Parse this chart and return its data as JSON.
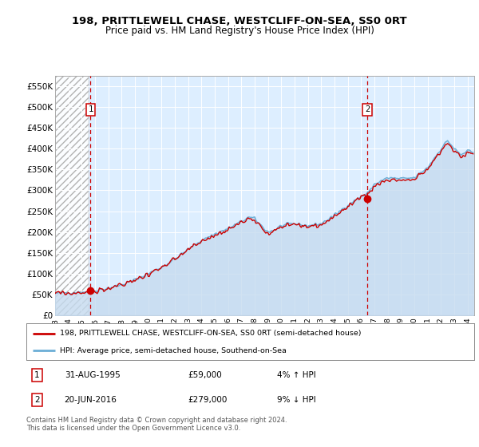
{
  "title": "198, PRITTLEWELL CHASE, WESTCLIFF-ON-SEA, SS0 0RT",
  "subtitle": "Price paid vs. HM Land Registry's House Price Index (HPI)",
  "ylim": [
    0,
    575000
  ],
  "yticks": [
    0,
    50000,
    100000,
    150000,
    200000,
    250000,
    300000,
    350000,
    400000,
    450000,
    500000,
    550000
  ],
  "ytick_labels": [
    "£0",
    "£50K",
    "£100K",
    "£150K",
    "£200K",
    "£250K",
    "£300K",
    "£350K",
    "£400K",
    "£450K",
    "£500K",
    "£550K"
  ],
  "xtick_years": [
    "1993",
    "1994",
    "1995",
    "1996",
    "1997",
    "1998",
    "1999",
    "2000",
    "2001",
    "2002",
    "2003",
    "2004",
    "2005",
    "2006",
    "2007",
    "2008",
    "2009",
    "2010",
    "2011",
    "2012",
    "2013",
    "2014",
    "2015",
    "2016",
    "2017",
    "2018",
    "2019",
    "2020",
    "2021",
    "2022",
    "2023",
    "2024"
  ],
  "sale1_x": 1995.667,
  "sale1_y": 59000,
  "sale1_label": "1",
  "sale1_date": "31-AUG-1995",
  "sale1_price": "£59,000",
  "sale1_hpi": "4% ↑ HPI",
  "sale2_x": 2016.46,
  "sale2_y": 279000,
  "sale2_label": "2",
  "sale2_date": "20-JUN-2016",
  "sale2_price": "£279,000",
  "sale2_hpi": "9% ↓ HPI",
  "hpi_color": "#6baed6",
  "hpi_fill_color": "#c6dbef",
  "sale_color": "#cc0000",
  "dashed_line_color": "#cc0000",
  "legend_label1": "198, PRITTLEWELL CHASE, WESTCLIFF-ON-SEA, SS0 0RT (semi-detached house)",
  "legend_label2": "HPI: Average price, semi-detached house, Southend-on-Sea",
  "footer": "Contains HM Land Registry data © Crown copyright and database right 2024.\nThis data is licensed under the Open Government Licence v3.0.",
  "plot_bg_color": "#ddeeff",
  "fig_bg_color": "#ffffff",
  "xlim": [
    1993.0,
    2024.5
  ]
}
